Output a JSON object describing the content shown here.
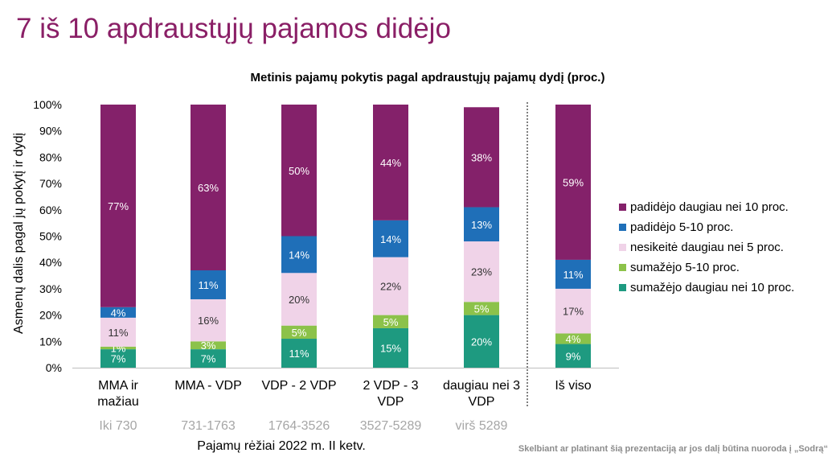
{
  "slide": {
    "title": "7 iš 10 apdraustųjų pajamos didėjo",
    "footer_note": "Skelbiant ar platinant šią prezentaciją ar jos dalį būtina nuoroda į „Sodrą“"
  },
  "chart_data": {
    "type": "bar",
    "stacked": true,
    "title": "Metinis pajamų pokytis pagal apdraustųjų pajamų dydį (proc.)",
    "ylabel": "Asmenų dalis pagal jų pokytį ir dydį",
    "xlabel": "Pajamų rėžiai 2022 m. II ketv.",
    "ylim": [
      0,
      100
    ],
    "yticks": [
      "0%",
      "10%",
      "20%",
      "30%",
      "40%",
      "50%",
      "60%",
      "70%",
      "80%",
      "90%",
      "100%"
    ],
    "categories": [
      [
        "MMA ir",
        "mažiau"
      ],
      [
        "MMA - VDP"
      ],
      [
        "VDP - 2 VDP"
      ],
      [
        "2 VDP - 3",
        "VDP"
      ],
      [
        "daugiau nei 3",
        "VDP"
      ],
      [
        "Iš viso"
      ]
    ],
    "category_ranges": [
      "Iki 730",
      "731-1763",
      "1764-3526",
      "3527-5289",
      "virš 5289",
      ""
    ],
    "separator_before_last": true,
    "series": [
      {
        "name": "sumažėjo daugiau nei 10 proc.",
        "color": "#1e9a80",
        "label_color": "#ffffff",
        "values": [
          7,
          7,
          11,
          15,
          20,
          9
        ],
        "labels": [
          "7%",
          "7%",
          "11%",
          "15%",
          "20%",
          "9%"
        ]
      },
      {
        "name": "sumažėjo 5-10 proc.",
        "color": "#8cc24a",
        "label_color": "#ffffff",
        "values": [
          1,
          3,
          5,
          5,
          5,
          4
        ],
        "labels": [
          "1%",
          "3%",
          "5%",
          "5%",
          "5%",
          "4%"
        ]
      },
      {
        "name": "nesikeitė daugiau nei 5 proc.",
        "color": "#f0d3e8",
        "label_color": "#333333",
        "values": [
          11,
          16,
          20,
          22,
          23,
          17
        ],
        "labels": [
          "11%",
          "16%",
          "20%",
          "22%",
          "23%",
          "17%"
        ]
      },
      {
        "name": "padidėjo 5-10 proc.",
        "color": "#1f6fb8",
        "label_color": "#ffffff",
        "values": [
          4,
          11,
          14,
          14,
          13,
          11
        ],
        "labels": [
          "4%",
          "11%",
          "14%",
          "14%",
          "13%",
          "11%"
        ]
      },
      {
        "name": "padidėjo daugiau nei 10 proc.",
        "color": "#84216a",
        "label_color": "#ffffff",
        "values": [
          77,
          63,
          50,
          44,
          38,
          59
        ],
        "labels": [
          "77%",
          "63%",
          "50%",
          "44%",
          "38%",
          "59%"
        ]
      }
    ],
    "legend_order": [
      4,
      3,
      2,
      1,
      0
    ],
    "legend_position": "right",
    "grid": false
  }
}
